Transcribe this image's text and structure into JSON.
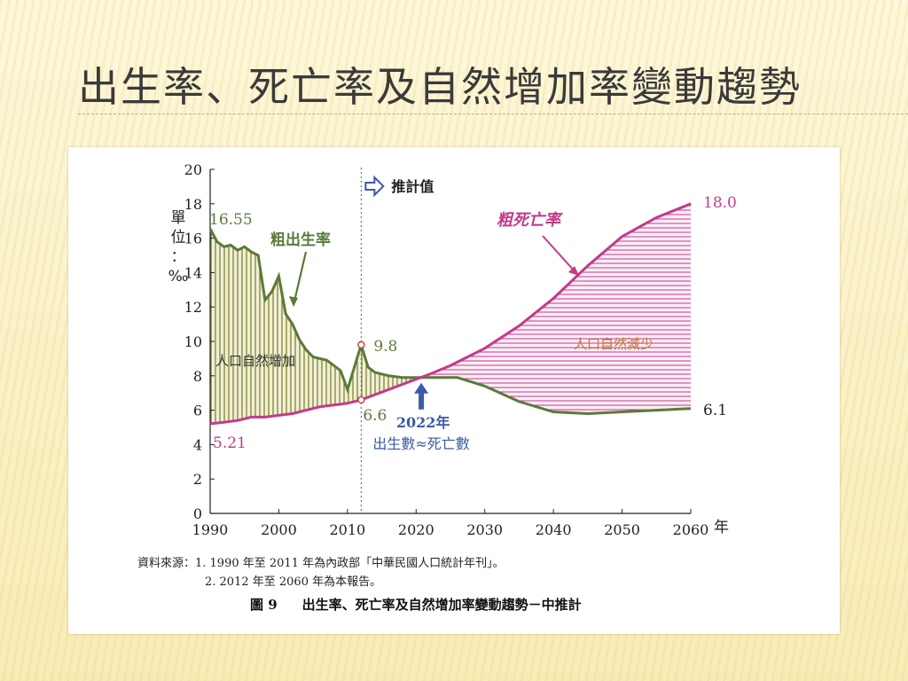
{
  "slide": {
    "title": "出生率、死亡率及自然增加率變動趨勢"
  },
  "chart_data": {
    "type": "line",
    "title": "",
    "xlabel": "年",
    "ylabel": "單位：‰",
    "xlim": [
      1990,
      2060
    ],
    "ylim": [
      0,
      20
    ],
    "x_ticks": [
      "1990",
      "2000",
      "2010",
      "2020",
      "2030",
      "2040",
      "2050",
      "2060"
    ],
    "y_ticks": [
      "0",
      "2",
      "4",
      "6",
      "8",
      "10",
      "12",
      "14",
      "16",
      "18",
      "20"
    ],
    "x_tick_values": [
      1990,
      2000,
      2010,
      2020,
      2030,
      2040,
      2050,
      2060
    ],
    "y_tick_values": [
      0,
      2,
      4,
      6,
      8,
      10,
      12,
      14,
      16,
      18,
      20
    ],
    "projection_start": 2012,
    "projection_label": "推計值",
    "series": [
      {
        "name": "粗出生率",
        "color": "#5a7a3a",
        "x": [
          1990,
          1991,
          1992,
          1993,
          1994,
          1995,
          1996,
          1997,
          1998,
          1999,
          2000,
          2001,
          2002,
          2003,
          2004,
          2005,
          2006,
          2007,
          2008,
          2009,
          2010,
          2011,
          2012,
          2013,
          2014,
          2016,
          2018,
          2020,
          2022,
          2026,
          2030,
          2035,
          2040,
          2045,
          2050,
          2055,
          2060
        ],
        "y": [
          16.55,
          15.8,
          15.5,
          15.6,
          15.3,
          15.5,
          15.2,
          15.0,
          12.4,
          12.9,
          13.8,
          11.6,
          11.0,
          10.1,
          9.5,
          9.1,
          9.0,
          8.9,
          8.6,
          8.3,
          7.2,
          8.5,
          9.8,
          8.5,
          8.2,
          8.0,
          7.9,
          7.9,
          7.9,
          7.9,
          7.4,
          6.5,
          5.9,
          5.8,
          5.9,
          6.0,
          6.1
        ]
      },
      {
        "name": "粗死亡率",
        "color": "#c43a8a",
        "x": [
          1990,
          1992,
          1994,
          1996,
          1998,
          2000,
          2002,
          2004,
          2006,
          2008,
          2010,
          2012,
          2014,
          2016,
          2018,
          2020,
          2022,
          2025,
          2030,
          2035,
          2040,
          2045,
          2050,
          2055,
          2060
        ],
        "y": [
          5.21,
          5.3,
          5.4,
          5.6,
          5.6,
          5.7,
          5.8,
          6.0,
          6.2,
          6.3,
          6.4,
          6.6,
          6.9,
          7.2,
          7.5,
          7.8,
          8.1,
          8.6,
          9.6,
          10.9,
          12.5,
          14.4,
          16.1,
          17.2,
          18.0
        ]
      }
    ],
    "annotations": {
      "birth_start": "16.55",
      "birth_peak_2012": "9.8",
      "death_start": "5.21",
      "death_2012": "6.6",
      "death_end": "18.0",
      "birth_end": "6.1",
      "natural_increase": "人口自然增加",
      "natural_decrease": "人口自然減少",
      "crossover_year": "2022年",
      "crossover_text": "出生數≈死亡數"
    },
    "colors": {
      "birth": "#5a7a3a",
      "death": "#c43a8a",
      "increase_fill": "#7a7a2a",
      "decrease_fill": "#c43a8a",
      "projection_arrow": "#3d5aa8"
    }
  },
  "source": {
    "line1": "資料來源：1. 1990 年至 2011 年為內政部「中華民國人口統計年刊」。",
    "line2": "2. 2012 年至 2060 年為本報告。"
  },
  "caption": {
    "figure": "圖 9",
    "text": "出生率、死亡率及自然增加率變動趨勢－中推計"
  }
}
